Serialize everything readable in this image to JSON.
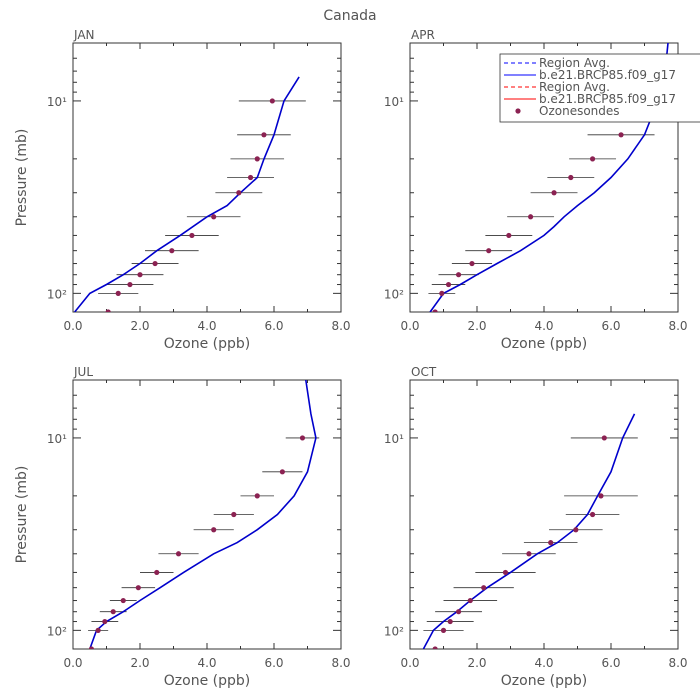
{
  "figure": {
    "title": "Canada"
  },
  "legend": {
    "entries": [
      {
        "label": "Region Avg.",
        "color": "#0000ff",
        "dash": "dashed"
      },
      {
        "label": "b.e21.BRCP85.f09_g17",
        "color": "#0000ff",
        "dash": "solid"
      },
      {
        "label": "Region Avg.",
        "color": "#ff0000",
        "dash": "dashed"
      },
      {
        "label": "b.e21.BRCP85.f09_g17",
        "color": "#ff0000",
        "dash": "solid"
      },
      {
        "label": "Ozonesondes",
        "color": "#8b2252",
        "dash": "marker"
      }
    ]
  },
  "colors": {
    "model_line": "#0000cc",
    "model_line_red": "#ff0000",
    "obs_marker": "#8b2252",
    "error_bar": "#333333",
    "axis": "#333333",
    "text": "#555555"
  },
  "chart_data": [
    {
      "type": "line",
      "panel": "JAN",
      "xlabel": "Ozone (ppb)",
      "ylabel": "Pressure (mb)",
      "xlim": [
        0,
        8
      ],
      "ylim": [
        125,
        5
      ],
      "yscale": "log",
      "xticks": [
        "0.0",
        "2.0",
        "4.0",
        "6.0",
        "8.0"
      ],
      "yticks": [
        {
          "value": 10,
          "label": "10¹"
        },
        {
          "value": 100,
          "label": "10²"
        }
      ],
      "model": {
        "x": [
          0.05,
          0.5,
          1.0,
          1.5,
          2.0,
          2.5,
          3.2,
          4.0,
          4.6,
          5.0,
          5.5,
          5.7,
          6.0,
          6.3,
          6.75
        ],
        "y": [
          125,
          100,
          90,
          80,
          70,
          60,
          50,
          40,
          35,
          30,
          25,
          20,
          15,
          10,
          7.5
        ]
      },
      "observations": [
        {
          "p": 125,
          "x": 1.05,
          "xerr": 0.3
        },
        {
          "p": 100,
          "x": 1.35,
          "xerr": 0.6
        },
        {
          "p": 90,
          "x": 1.7,
          "xerr": 0.7
        },
        {
          "p": 80,
          "x": 2.0,
          "xerr": 0.7
        },
        {
          "p": 70,
          "x": 2.45,
          "xerr": 0.7
        },
        {
          "p": 60,
          "x": 2.95,
          "xerr": 0.8
        },
        {
          "p": 50,
          "x": 3.55,
          "xerr": 0.8
        },
        {
          "p": 40,
          "x": 4.2,
          "xerr": 0.8
        },
        {
          "p": 30,
          "x": 4.95,
          "xerr": 0.7
        },
        {
          "p": 25,
          "x": 5.3,
          "xerr": 0.7
        },
        {
          "p": 20,
          "x": 5.5,
          "xerr": 0.8
        },
        {
          "p": 15,
          "x": 5.7,
          "xerr": 0.8
        },
        {
          "p": 10,
          "x": 5.95,
          "xerr": 1.0
        }
      ]
    },
    {
      "type": "line",
      "panel": "APR",
      "xlabel": "Ozone (ppb)",
      "ylabel": "",
      "xlim": [
        0,
        8
      ],
      "ylim": [
        125,
        5
      ],
      "yscale": "log",
      "xticks": [
        "0.0",
        "2.0",
        "4.0",
        "6.0",
        "8.0"
      ],
      "yticks": [
        {
          "value": 10,
          "label": "10¹"
        },
        {
          "value": 100,
          "label": "10²"
        }
      ],
      "model": {
        "x": [
          0.6,
          1.0,
          1.5,
          2.0,
          2.6,
          3.3,
          4.0,
          4.3,
          4.6,
          5.0,
          5.5,
          6.0,
          6.5,
          7.0,
          7.4,
          7.6,
          7.7
        ],
        "y": [
          125,
          100,
          90,
          80,
          70,
          60,
          50,
          45,
          40,
          35,
          30,
          25,
          20,
          15,
          10,
          7.5,
          5
        ]
      },
      "observations": [
        {
          "p": 125,
          "x": 0.75,
          "xerr": 0.3
        },
        {
          "p": 100,
          "x": 0.95,
          "xerr": 0.4
        },
        {
          "p": 90,
          "x": 1.15,
          "xerr": 0.5
        },
        {
          "p": 80,
          "x": 1.45,
          "xerr": 0.6
        },
        {
          "p": 70,
          "x": 1.85,
          "xerr": 0.6
        },
        {
          "p": 60,
          "x": 2.35,
          "xerr": 0.7
        },
        {
          "p": 50,
          "x": 2.95,
          "xerr": 0.7
        },
        {
          "p": 40,
          "x": 3.6,
          "xerr": 0.7
        },
        {
          "p": 30,
          "x": 4.3,
          "xerr": 0.7
        },
        {
          "p": 25,
          "x": 4.8,
          "xerr": 0.7
        },
        {
          "p": 20,
          "x": 5.45,
          "xerr": 0.7
        },
        {
          "p": 15,
          "x": 6.3,
          "xerr": 1.0
        },
        {
          "p": 10,
          "x": 7.15,
          "xerr": 1.0
        }
      ]
    },
    {
      "type": "line",
      "panel": "JUL",
      "xlabel": "Ozone (ppb)",
      "ylabel": "Pressure (mb)",
      "xlim": [
        0,
        8
      ],
      "ylim": [
        125,
        5
      ],
      "yscale": "log",
      "xticks": [
        "0.0",
        "2.0",
        "4.0",
        "6.0",
        "8.0"
      ],
      "yticks": [
        {
          "value": 10,
          "label": "10¹"
        },
        {
          "value": 100,
          "label": "10²"
        }
      ],
      "model": {
        "x": [
          0.5,
          0.7,
          1.0,
          1.5,
          2.0,
          2.6,
          3.3,
          4.2,
          4.9,
          5.5,
          6.1,
          6.6,
          7.0,
          7.25,
          7.1,
          6.95
        ],
        "y": [
          125,
          100,
          90,
          80,
          70,
          60,
          50,
          40,
          35,
          30,
          25,
          20,
          15,
          10,
          7.5,
          5
        ]
      },
      "observations": [
        {
          "p": 125,
          "x": 0.55,
          "xerr": 0.2
        },
        {
          "p": 100,
          "x": 0.75,
          "xerr": 0.3
        },
        {
          "p": 90,
          "x": 0.95,
          "xerr": 0.4
        },
        {
          "p": 80,
          "x": 1.2,
          "xerr": 0.4
        },
        {
          "p": 70,
          "x": 1.5,
          "xerr": 0.4
        },
        {
          "p": 60,
          "x": 1.95,
          "xerr": 0.5
        },
        {
          "p": 50,
          "x": 2.5,
          "xerr": 0.5
        },
        {
          "p": 40,
          "x": 3.15,
          "xerr": 0.6
        },
        {
          "p": 30,
          "x": 4.2,
          "xerr": 0.6
        },
        {
          "p": 25,
          "x": 4.8,
          "xerr": 0.6
        },
        {
          "p": 20,
          "x": 5.5,
          "xerr": 0.5
        },
        {
          "p": 15,
          "x": 6.25,
          "xerr": 0.6
        },
        {
          "p": 10,
          "x": 6.85,
          "xerr": 0.5
        }
      ]
    },
    {
      "type": "line",
      "panel": "OCT",
      "xlabel": "Ozone (ppb)",
      "ylabel": "",
      "xlim": [
        0,
        8
      ],
      "ylim": [
        125,
        5
      ],
      "yscale": "log",
      "xticks": [
        "0.0",
        "2.0",
        "4.0",
        "6.0",
        "8.0"
      ],
      "yticks": [
        {
          "value": 10,
          "label": "10¹"
        },
        {
          "value": 100,
          "label": "10²"
        }
      ],
      "model": {
        "x": [
          0.4,
          0.7,
          1.0,
          1.4,
          1.8,
          2.3,
          3.0,
          3.8,
          4.4,
          4.9,
          5.3,
          5.6,
          6.0,
          6.35,
          6.7
        ],
        "y": [
          125,
          100,
          90,
          80,
          70,
          60,
          50,
          40,
          35,
          30,
          25,
          20,
          15,
          10,
          7.5
        ]
      },
      "observations": [
        {
          "p": 125,
          "x": 0.75,
          "xerr": 0.3
        },
        {
          "p": 100,
          "x": 1.0,
          "xerr": 0.6
        },
        {
          "p": 90,
          "x": 1.2,
          "xerr": 0.7
        },
        {
          "p": 80,
          "x": 1.45,
          "xerr": 0.7
        },
        {
          "p": 70,
          "x": 1.8,
          "xerr": 0.8
        },
        {
          "p": 60,
          "x": 2.2,
          "xerr": 0.9
        },
        {
          "p": 50,
          "x": 2.85,
          "xerr": 0.9
        },
        {
          "p": 40,
          "x": 3.55,
          "xerr": 0.8
        },
        {
          "p": 35,
          "x": 4.2,
          "xerr": 0.8
        },
        {
          "p": 30,
          "x": 4.95,
          "xerr": 0.8
        },
        {
          "p": 25,
          "x": 5.45,
          "xerr": 0.8
        },
        {
          "p": 20,
          "x": 5.7,
          "xerr": 1.1
        },
        {
          "p": 10,
          "x": 5.8,
          "xerr": 1.0
        }
      ]
    }
  ]
}
